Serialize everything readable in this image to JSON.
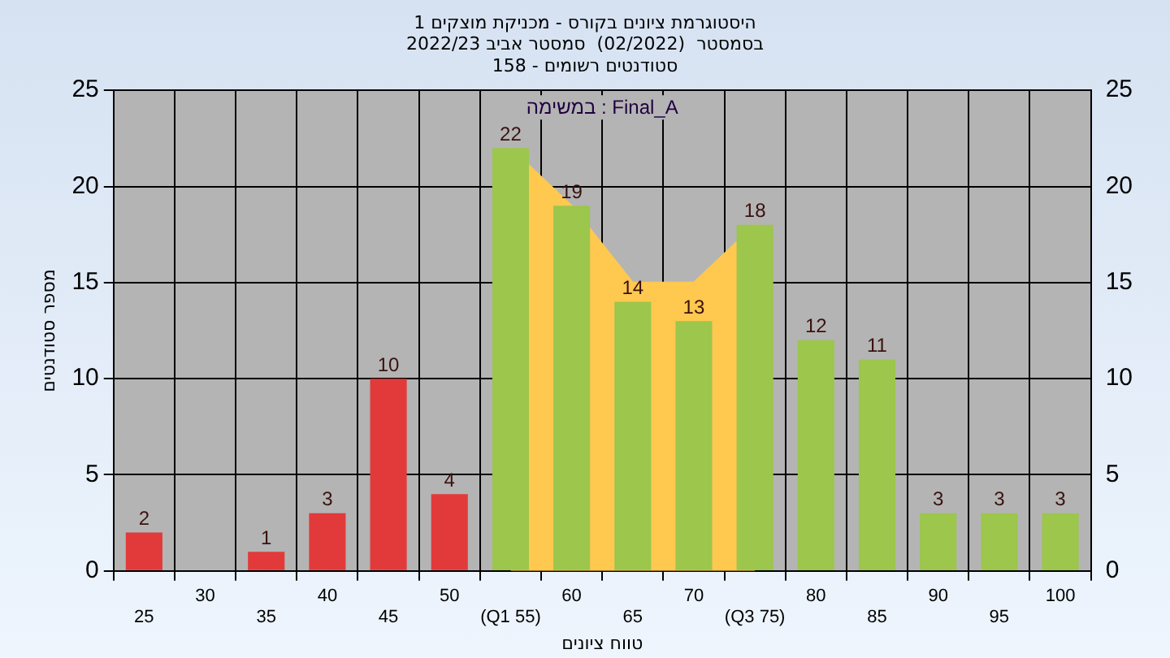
{
  "chart_data": {
    "type": "bar",
    "title": "היסטוגרמת ציונים בקורס - מכניקת מוצקים 1",
    "subtitle": "בסמסטר  (02/2022)  סמסטר אביב 2022/23\nסטודנטים רשומים - 158",
    "xlabel": "טווח ציונים",
    "ylabel": "מספר סטודנטים",
    "annotations": [
      "במשימה : Final_A"
    ],
    "categories": [
      "25",
      "30",
      "35",
      "40",
      "45",
      "50",
      "(Q1 55)",
      "60",
      "65",
      "70",
      "(Q3 75)",
      "80",
      "85",
      "90",
      "95",
      "100"
    ],
    "series": [
      {
        "type": "area",
        "color": "#ffc84f",
        "values": [
          null,
          null,
          null,
          null,
          null,
          null,
          22,
          19,
          15,
          15,
          18,
          null,
          null,
          null,
          null,
          null
        ]
      },
      {
        "type": "bar",
        "colors": [
          "#e23a3a",
          "#e23a3a",
          "#e23a3a",
          "#e23a3a",
          "#e23a3a",
          "#e23a3a",
          "#9cc64c",
          "#9cc64c",
          "#9cc64c",
          "#9cc64c",
          "#9cc64c",
          "#9cc64c",
          "#9cc64c",
          "#9cc64c",
          "#9cc64c",
          "#9cc64c"
        ],
        "values": [
          2,
          0,
          1,
          3,
          10,
          4,
          22,
          19,
          14,
          13,
          18,
          12,
          11,
          3,
          3,
          3
        ],
        "value_labels": [
          "2",
          null,
          "1",
          "3",
          "10",
          "4",
          "22",
          "19",
          "14",
          "13",
          "18",
          "12",
          "11",
          "3",
          "3",
          "3"
        ]
      }
    ],
    "ylim": [
      0,
      25
    ],
    "yticks": [
      0,
      5,
      10,
      15,
      20,
      25
    ],
    "y2lim": [
      0,
      25
    ],
    "y2ticks": [
      0,
      5,
      10,
      15,
      20,
      25
    ],
    "grid": true,
    "legend": false
  }
}
